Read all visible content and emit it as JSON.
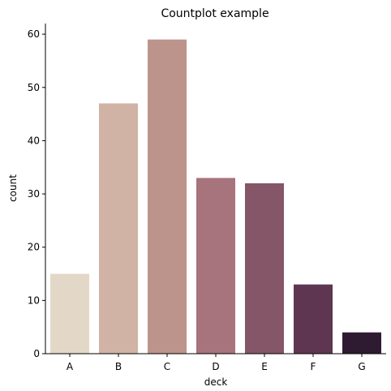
{
  "chart_data": {
    "type": "bar",
    "title": "Countplot example",
    "xlabel": "deck",
    "ylabel": "count",
    "categories": [
      "A",
      "B",
      "C",
      "D",
      "E",
      "F",
      "G"
    ],
    "values": [
      15,
      47,
      59,
      33,
      32,
      13,
      4
    ],
    "colors": [
      "#e3d8c7",
      "#d0b3a4",
      "#bc948c",
      "#a7737c",
      "#855668",
      "#5f3651",
      "#2f1b31"
    ],
    "ylim": [
      0,
      62
    ],
    "yticks": [
      0,
      10,
      20,
      30,
      40,
      50,
      60
    ],
    "grid": false,
    "legend": "none"
  }
}
